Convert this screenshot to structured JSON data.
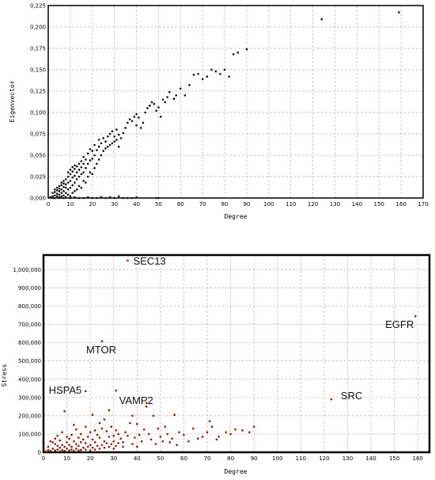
{
  "colors": {
    "top_points": "#111111",
    "bottom_points": "#8b1a0a",
    "grid": "#b8b8b8",
    "frame": "#000000"
  },
  "chart_data": [
    {
      "type": "scatter",
      "xlabel": "Degree",
      "ylabel": "Eigenvector",
      "xlim": [
        0,
        170
      ],
      "ylim": [
        0,
        0.225
      ],
      "xticks": [
        "0",
        "10",
        "20",
        "30",
        "40",
        "50",
        "60",
        "70",
        "80",
        "90",
        "100",
        "110",
        "120",
        "130",
        "140",
        "150",
        "160",
        "170"
      ],
      "yticks": [
        "0,000",
        "0,025",
        "0,050",
        "0,075",
        "0,100",
        "0,125",
        "0,150",
        "0,175",
        "0,200",
        "0,225"
      ],
      "grid": true,
      "points": [
        [
          1,
          0.001
        ],
        [
          2,
          0.002
        ],
        [
          2,
          0.006
        ],
        [
          3,
          0.003
        ],
        [
          3,
          0.007
        ],
        [
          3,
          0.01
        ],
        [
          4,
          0.002
        ],
        [
          4,
          0.005
        ],
        [
          4,
          0.009
        ],
        [
          4,
          0.012
        ],
        [
          5,
          0.001
        ],
        [
          5,
          0.004
        ],
        [
          5,
          0.008
        ],
        [
          5,
          0.011
        ],
        [
          5,
          0.014
        ],
        [
          6,
          0.002
        ],
        [
          6,
          0.006
        ],
        [
          6,
          0.01
        ],
        [
          6,
          0.015
        ],
        [
          6,
          0.018
        ],
        [
          7,
          0.003
        ],
        [
          7,
          0.008
        ],
        [
          7,
          0.013
        ],
        [
          7,
          0.017
        ],
        [
          7,
          0.02
        ],
        [
          8,
          0.001
        ],
        [
          8,
          0.006
        ],
        [
          8,
          0.012
        ],
        [
          8,
          0.016
        ],
        [
          8,
          0.022
        ],
        [
          9,
          0.004
        ],
        [
          9,
          0.01
        ],
        [
          9,
          0.018
        ],
        [
          9,
          0.025
        ],
        [
          9,
          0.03
        ],
        [
          10,
          0.002
        ],
        [
          10,
          0.012
        ],
        [
          10,
          0.02
        ],
        [
          10,
          0.028
        ],
        [
          10,
          0.033
        ],
        [
          11,
          0.006
        ],
        [
          11,
          0.015
        ],
        [
          11,
          0.024
        ],
        [
          11,
          0.031
        ],
        [
          11,
          0.036
        ],
        [
          12,
          0.008
        ],
        [
          12,
          0.018
        ],
        [
          12,
          0.026
        ],
        [
          12,
          0.034
        ],
        [
          12,
          0.038
        ],
        [
          13,
          0.01
        ],
        [
          13,
          0.022
        ],
        [
          13,
          0.03
        ],
        [
          13,
          0.037
        ],
        [
          14,
          0.014
        ],
        [
          14,
          0.025
        ],
        [
          14,
          0.033
        ],
        [
          14,
          0.04
        ],
        [
          15,
          0.012
        ],
        [
          15,
          0.028
        ],
        [
          15,
          0.036
        ],
        [
          15,
          0.043
        ],
        [
          16,
          0.02
        ],
        [
          16,
          0.03
        ],
        [
          16,
          0.04
        ],
        [
          16,
          0.048
        ],
        [
          17,
          0.018
        ],
        [
          17,
          0.035
        ],
        [
          17,
          0.045
        ],
        [
          18,
          0.025
        ],
        [
          18,
          0.04
        ],
        [
          18,
          0.052
        ],
        [
          19,
          0.03
        ],
        [
          19,
          0.044
        ],
        [
          19,
          0.057
        ],
        [
          20,
          0.028
        ],
        [
          20,
          0.046
        ],
        [
          20,
          0.055
        ],
        [
          21,
          0.035
        ],
        [
          21,
          0.05
        ],
        [
          21,
          0.062
        ],
        [
          22,
          0.04
        ],
        [
          22,
          0.056
        ],
        [
          23,
          0.045
        ],
        [
          23,
          0.06
        ],
        [
          23,
          0.068
        ],
        [
          24,
          0.05
        ],
        [
          24,
          0.064
        ],
        [
          25,
          0.055
        ],
        [
          25,
          0.07
        ],
        [
          26,
          0.058
        ],
        [
          26,
          0.066
        ],
        [
          27,
          0.06
        ],
        [
          27,
          0.072
        ],
        [
          28,
          0.062
        ],
        [
          28,
          0.075
        ],
        [
          29,
          0.064
        ],
        [
          29,
          0.078
        ],
        [
          30,
          0.066
        ],
        [
          30,
          0.072
        ],
        [
          31,
          0.068
        ],
        [
          31,
          0.08
        ],
        [
          32,
          0.06
        ],
        [
          32,
          0.074
        ],
        [
          33,
          0.07
        ],
        [
          34,
          0.076
        ],
        [
          35,
          0.082
        ],
        [
          36,
          0.088
        ],
        [
          37,
          0.092
        ],
        [
          38,
          0.09
        ],
        [
          39,
          0.095
        ],
        [
          40,
          0.085
        ],
        [
          40,
          0.098
        ],
        [
          41,
          0.094
        ],
        [
          42,
          0.082
        ],
        [
          43,
          0.088
        ],
        [
          44,
          0.1
        ],
        [
          45,
          0.105
        ],
        [
          46,
          0.108
        ],
        [
          47,
          0.112
        ],
        [
          48,
          0.11
        ],
        [
          49,
          0.102
        ],
        [
          50,
          0.106
        ],
        [
          51,
          0.095
        ],
        [
          52,
          0.115
        ],
        [
          53,
          0.112
        ],
        [
          54,
          0.118
        ],
        [
          55,
          0.124
        ],
        [
          57,
          0.116
        ],
        [
          58,
          0.12
        ],
        [
          60,
          0.128
        ],
        [
          62,
          0.12
        ],
        [
          64,
          0.132
        ],
        [
          66,
          0.144
        ],
        [
          68,
          0.145
        ],
        [
          70,
          0.139
        ],
        [
          72,
          0.142
        ],
        [
          74,
          0.15
        ],
        [
          76,
          0.148
        ],
        [
          78,
          0.145
        ],
        [
          80,
          0.15
        ],
        [
          82,
          0.142
        ],
        [
          84,
          0.168
        ],
        [
          86,
          0.17
        ],
        [
          90,
          0.174
        ],
        [
          124,
          0.209
        ],
        [
          159,
          0.217
        ],
        [
          2,
          0.0
        ],
        [
          3,
          0.0
        ],
        [
          5,
          0.0
        ],
        [
          7,
          0.0
        ],
        [
          8,
          0.001
        ],
        [
          10,
          0.0
        ],
        [
          12,
          0.001
        ],
        [
          14,
          0.0
        ],
        [
          16,
          0.0
        ],
        [
          18,
          0.001
        ],
        [
          20,
          0.0
        ],
        [
          22,
          0.0
        ],
        [
          24,
          0.001
        ],
        [
          26,
          0.0
        ],
        [
          28,
          0.001
        ],
        [
          30,
          0.0
        ],
        [
          32,
          0.002
        ],
        [
          34,
          0.0
        ],
        [
          36,
          0.0
        ],
        [
          38,
          0.0
        ],
        [
          40,
          0.001
        ],
        [
          49,
          0.0
        ],
        [
          50,
          0.0
        ]
      ]
    },
    {
      "type": "scatter",
      "xlabel": "Degree",
      "ylabel": "Stress",
      "xlim": [
        0,
        165
      ],
      "ylim": [
        0,
        1080000
      ],
      "xticks": [
        "0",
        "10",
        "20",
        "30",
        "40",
        "50",
        "60",
        "70",
        "80",
        "90",
        "100",
        "110",
        "120",
        "130",
        "140",
        "150",
        "160"
      ],
      "yticks": [
        "0",
        "100,000",
        "200,000",
        "300,000",
        "400,000",
        "500,000",
        "600,000",
        "700,000",
        "800,000",
        "900,000",
        "1,000,000"
      ],
      "grid": true,
      "annotations": [
        {
          "text": "SEC13",
          "x": 36,
          "y": 1050000
        },
        {
          "text": "MTOR",
          "x": 25,
          "y": 608000
        },
        {
          "text": "HSPA5",
          "x": 18,
          "y": 335000
        },
        {
          "text": "VAMP2",
          "x": 31,
          "y": 338000
        },
        {
          "text": "SRC",
          "x": 123,
          "y": 290000
        },
        {
          "text": "EGFR",
          "x": 159,
          "y": 745000
        }
      ],
      "points": [
        [
          36,
          1050000
        ],
        [
          25,
          608000
        ],
        [
          18,
          335000
        ],
        [
          31,
          338000
        ],
        [
          123,
          290000
        ],
        [
          159,
          745000
        ],
        [
          1,
          5000
        ],
        [
          2,
          12000
        ],
        [
          2,
          30000
        ],
        [
          3,
          8000
        ],
        [
          3,
          60000
        ],
        [
          4,
          20000
        ],
        [
          4,
          55000
        ],
        [
          5,
          10000
        ],
        [
          5,
          45000
        ],
        [
          5,
          75000
        ],
        [
          6,
          15000
        ],
        [
          6,
          35000
        ],
        [
          6,
          90000
        ],
        [
          7,
          5000
        ],
        [
          7,
          25000
        ],
        [
          7,
          65000
        ],
        [
          8,
          12000
        ],
        [
          8,
          40000
        ],
        [
          8,
          110000
        ],
        [
          9,
          8000
        ],
        [
          9,
          30000
        ],
        [
          9,
          225000
        ],
        [
          10,
          20000
        ],
        [
          10,
          55000
        ],
        [
          10,
          85000
        ],
        [
          11,
          10000
        ],
        [
          11,
          40000
        ],
        [
          11,
          75000
        ],
        [
          12,
          15000
        ],
        [
          12,
          30000
        ],
        [
          12,
          95000
        ],
        [
          13,
          8000
        ],
        [
          13,
          60000
        ],
        [
          13,
          150000
        ],
        [
          14,
          20000
        ],
        [
          14,
          45000
        ],
        [
          14,
          125000
        ],
        [
          15,
          10000
        ],
        [
          15,
          35000
        ],
        [
          15,
          80000
        ],
        [
          16,
          12000
        ],
        [
          16,
          55000
        ],
        [
          16,
          100000
        ],
        [
          17,
          25000
        ],
        [
          17,
          70000
        ],
        [
          18,
          15000
        ],
        [
          18,
          50000
        ],
        [
          18,
          140000
        ],
        [
          19,
          30000
        ],
        [
          19,
          85000
        ],
        [
          20,
          10000
        ],
        [
          20,
          40000
        ],
        [
          20,
          110000
        ],
        [
          21,
          25000
        ],
        [
          21,
          70000
        ],
        [
          21,
          205000
        ],
        [
          22,
          15000
        ],
        [
          22,
          55000
        ],
        [
          22,
          120000
        ],
        [
          23,
          35000
        ],
        [
          23,
          95000
        ],
        [
          24,
          20000
        ],
        [
          24,
          80000
        ],
        [
          24,
          160000
        ],
        [
          25,
          40000
        ],
        [
          25,
          130000
        ],
        [
          26,
          25000
        ],
        [
          26,
          60000
        ],
        [
          26,
          180000
        ],
        [
          27,
          50000
        ],
        [
          27,
          115000
        ],
        [
          28,
          30000
        ],
        [
          28,
          85000
        ],
        [
          28,
          230000
        ],
        [
          29,
          45000
        ],
        [
          29,
          140000
        ],
        [
          30,
          20000
        ],
        [
          30,
          90000
        ],
        [
          30,
          60000
        ],
        [
          31,
          35000
        ],
        [
          31,
          120000
        ],
        [
          32,
          50000
        ],
        [
          32,
          100000
        ],
        [
          33,
          75000
        ],
        [
          34,
          30000
        ],
        [
          34,
          55000
        ],
        [
          35,
          110000
        ],
        [
          36,
          90000
        ],
        [
          37,
          160000
        ],
        [
          38,
          45000
        ],
        [
          38,
          200000
        ],
        [
          39,
          80000
        ],
        [
          40,
          30000
        ],
        [
          40,
          155000
        ],
        [
          41,
          95000
        ],
        [
          42,
          60000
        ],
        [
          43,
          125000
        ],
        [
          44,
          270000
        ],
        [
          44,
          250000
        ],
        [
          45,
          100000
        ],
        [
          46,
          70000
        ],
        [
          47,
          200000
        ],
        [
          48,
          45000
        ],
        [
          49,
          130000
        ],
        [
          50,
          85000
        ],
        [
          51,
          60000
        ],
        [
          52,
          140000
        ],
        [
          53,
          100000
        ],
        [
          54,
          55000
        ],
        [
          55,
          75000
        ],
        [
          56,
          205000
        ],
        [
          57,
          40000
        ],
        [
          58,
          110000
        ],
        [
          60,
          95000
        ],
        [
          62,
          60000
        ],
        [
          64,
          130000
        ],
        [
          66,
          75000
        ],
        [
          68,
          85000
        ],
        [
          70,
          110000
        ],
        [
          71,
          170000
        ],
        [
          72,
          140000
        ],
        [
          74,
          70000
        ],
        [
          75,
          85000
        ],
        [
          78,
          110000
        ],
        [
          80,
          100000
        ],
        [
          82,
          125000
        ],
        [
          85,
          120000
        ],
        [
          88,
          110000
        ],
        [
          90,
          140000
        ]
      ]
    }
  ]
}
